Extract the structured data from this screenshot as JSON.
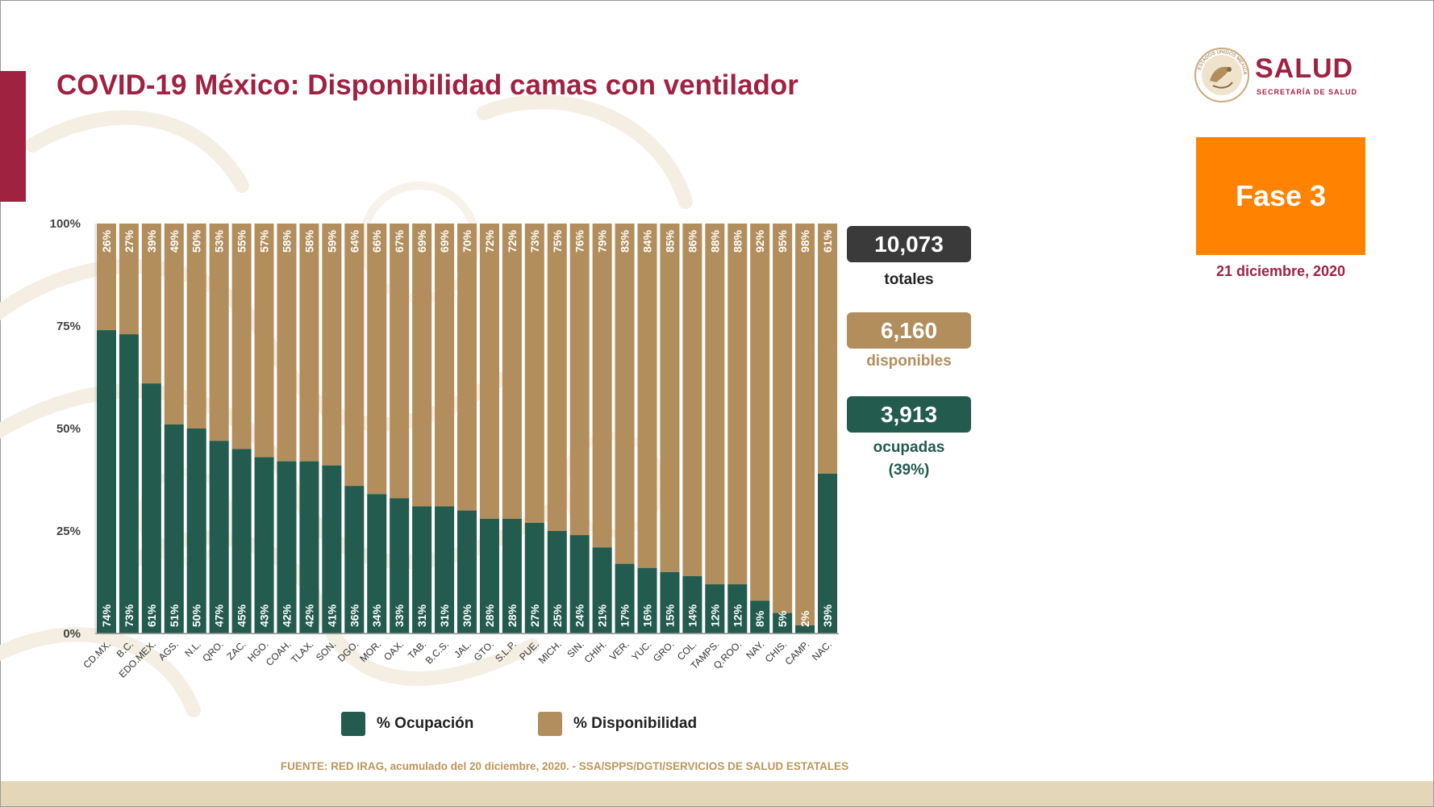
{
  "slide": {
    "title": "COVID-19 México: Disponibilidad camas con ventilador",
    "logo_text": "SALUD",
    "logo_subtext": "SECRETARÍA DE SALUD",
    "logo_ring_text": "ESTADOS UNIDOS MEXICANOS",
    "phase": "Fase 3",
    "date": "21 diciembre, 2020",
    "source": "FUENTE: RED IRAG, acumulado del 20 diciembre, 2020. -  SSA/SPPS/DGTI/SERVICIOS DE SALUD ESTATALES"
  },
  "stats": {
    "total_value": "10,073",
    "total_label": "totales",
    "available_value": "6,160",
    "available_label": "disponibles",
    "occupied_value": "3,913",
    "occupied_label": "ocupadas",
    "occupied_pct": "(39%)"
  },
  "colors": {
    "brand": "#9f2241",
    "occupied": "#235b4e",
    "available": "#b38e5d",
    "total_box": "#3a3a3a",
    "phase": "#ff8200",
    "source_text": "#bc955c",
    "band": "#e3d6b9"
  },
  "chart_data": {
    "type": "bar",
    "stacked": true,
    "percent_stacked": true,
    "categories": [
      "CD.MX.",
      "B.C.",
      "EDO.MEX.",
      "AGS.",
      "N.L.",
      "QRO.",
      "ZAC.",
      "HGO.",
      "COAH.",
      "TLAX.",
      "SON.",
      "DGO.",
      "MOR.",
      "OAX.",
      "TAB.",
      "B.C.S.",
      "JAL.",
      "GTO.",
      "S.L.P.",
      "PUE.",
      "MICH.",
      "SIN.",
      "CHIH.",
      "VER.",
      "YUC.",
      "GRO.",
      "COL.",
      "TAMPS.",
      "Q.ROO.",
      "NAY.",
      "CHIS.",
      "CAMP.",
      "NAC."
    ],
    "series": [
      {
        "name": "% Ocupación",
        "color": "#235b4e",
        "values": [
          74,
          73,
          61,
          51,
          50,
          47,
          45,
          43,
          42,
          42,
          41,
          36,
          34,
          33,
          31,
          31,
          30,
          28,
          28,
          27,
          25,
          24,
          21,
          17,
          16,
          15,
          14,
          12,
          12,
          8,
          5,
          2,
          39
        ],
        "labels": [
          "74%",
          "73%",
          "61%",
          "51%",
          "50%",
          "47%",
          "45%",
          "43%",
          "42%",
          "42%",
          "41%",
          "36%",
          "34%",
          "33%",
          "31%",
          "31%",
          "30%",
          "28%",
          "28%",
          "27%",
          "25%",
          "24%",
          "21%",
          "17%",
          "16%",
          "15%",
          "14%",
          "12%",
          "12%",
          "8%",
          "5%",
          "2%",
          "39%"
        ]
      },
      {
        "name": "% Disponibilidad",
        "color": "#b38e5d",
        "values": [
          26,
          27,
          39,
          49,
          50,
          53,
          55,
          57,
          58,
          58,
          59,
          64,
          66,
          67,
          69,
          69,
          70,
          72,
          72,
          73,
          75,
          76,
          79,
          83,
          84,
          85,
          86,
          88,
          88,
          92,
          95,
          98,
          61
        ],
        "labels": [
          "26%",
          "27%",
          "39%",
          "49%",
          "50%",
          "53%",
          "55%",
          "57%",
          "58%",
          "58%",
          "59%",
          "64%",
          "66%",
          "67%",
          "69%",
          "69%",
          "70%",
          "72%",
          "72%",
          "73%",
          "75%",
          "76%",
          "79%",
          "83%",
          "84%",
          "85%",
          "86%",
          "88%",
          "88%",
          "92%",
          "95%",
          "98%",
          "61%"
        ]
      }
    ],
    "y_ticks": [
      "0%",
      "25%",
      "50%",
      "75%",
      "100%"
    ],
    "y_tick_values": [
      0,
      25,
      50,
      75,
      100
    ],
    "ylim": [
      0,
      100
    ],
    "title": "",
    "xlabel": "",
    "ylabel": "",
    "grid": false,
    "legend_position": "bottom"
  }
}
